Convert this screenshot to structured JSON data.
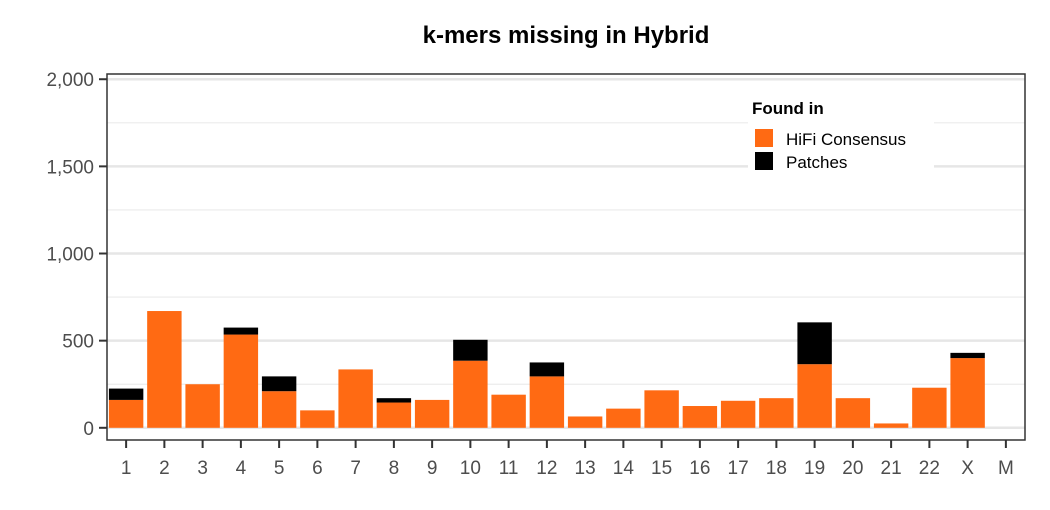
{
  "chart_data": {
    "type": "bar",
    "stacked": true,
    "title": "k-mers missing in Hybrid",
    "xlabel": "",
    "ylabel": "",
    "categories": [
      "1",
      "2",
      "3",
      "4",
      "5",
      "6",
      "7",
      "8",
      "9",
      "10",
      "11",
      "12",
      "13",
      "14",
      "15",
      "16",
      "17",
      "18",
      "19",
      "20",
      "21",
      "22",
      "X",
      "M"
    ],
    "series": [
      {
        "name": "HiFi Consensus",
        "color": "#ff6a13",
        "values": [
          160,
          670,
          250,
          535,
          210,
          100,
          335,
          145,
          160,
          385,
          190,
          295,
          65,
          110,
          215,
          125,
          155,
          170,
          365,
          170,
          25,
          230,
          400,
          0
        ]
      },
      {
        "name": "Patches",
        "color": "#000000",
        "values": [
          65,
          0,
          0,
          40,
          85,
          0,
          0,
          25,
          0,
          120,
          0,
          80,
          0,
          0,
          0,
          0,
          0,
          0,
          240,
          0,
          0,
          0,
          30,
          0
        ]
      }
    ],
    "ylim": [
      -70,
      2030
    ],
    "yticks": [
      0,
      500,
      1000,
      1500,
      2000
    ],
    "yticklabels": [
      "0",
      "500",
      "1,000",
      "1,500",
      "2,000"
    ],
    "grid": true,
    "legend": {
      "title": "Found in",
      "placement": "top-right"
    }
  }
}
